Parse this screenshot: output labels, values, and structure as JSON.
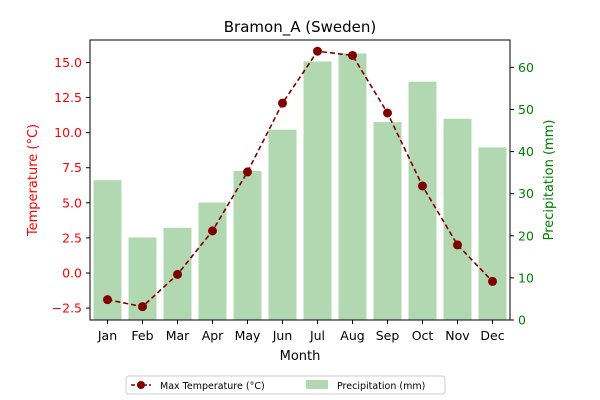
{
  "chart_data": {
    "type": "bar+line",
    "title": "Bramon_A (Sweden)",
    "xlabel": "Month",
    "ylabel_left": "Temperature (°C)",
    "ylabel_right": "Precipitation (mm)",
    "categories": [
      "Jan",
      "Feb",
      "Mar",
      "Apr",
      "May",
      "Jun",
      "Jul",
      "Aug",
      "Sep",
      "Oct",
      "Nov",
      "Dec"
    ],
    "series": [
      {
        "name": "Max Temperature (°C)",
        "type": "line",
        "axis": "left",
        "color": "#800000",
        "values": [
          -1.9,
          -2.4,
          -0.1,
          3.0,
          7.2,
          12.1,
          15.8,
          15.5,
          11.4,
          6.2,
          2.0,
          -0.6
        ]
      },
      {
        "name": "Precipitation (mm)",
        "type": "bar",
        "axis": "right",
        "color": "#b2d8b2",
        "values": [
          33.2,
          19.6,
          21.9,
          27.9,
          35.4,
          45.2,
          61.4,
          63.3,
          47.0,
          56.6,
          47.8,
          41.0
        ]
      }
    ],
    "ylim_left": [
      -3.35,
      16.6
    ],
    "ylim_right": [
      0,
      66.5
    ],
    "yticks_left": [
      "−2.5",
      "0.0",
      "2.5",
      "5.0",
      "7.5",
      "10.0",
      "12.5",
      "15.0"
    ],
    "yticks_left_values": [
      -2.5,
      0,
      2.5,
      5,
      7.5,
      10,
      12.5,
      15
    ],
    "yticks_right": [
      "0",
      "10",
      "20",
      "30",
      "40",
      "50",
      "60"
    ],
    "yticks_right_values": [
      0,
      10,
      20,
      30,
      40,
      50,
      60
    ],
    "left_axis_color": "#ff0000",
    "right_axis_color": "#008000",
    "grid": false,
    "legend_position": "bottom-center"
  }
}
